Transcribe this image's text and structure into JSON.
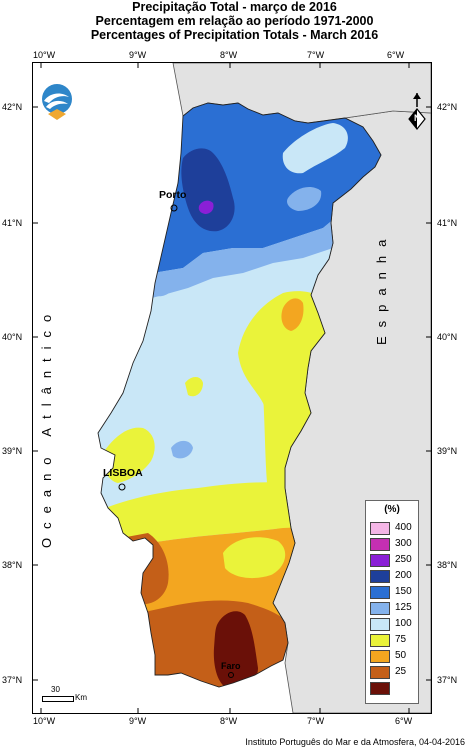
{
  "title": {
    "line1": "Precipitação Total  - março de 2016",
    "line2": "Percentagem em relação ao período 1971-2000",
    "line3": "Percentages of Precipitation Totals - March 2016"
  },
  "longitude_ticks": [
    "10°W",
    "9°W",
    "8°W",
    "7°W",
    "6°W"
  ],
  "latitude_ticks": [
    "42°N",
    "41°N",
    "40°N",
    "39°N",
    "38°N",
    "37°N"
  ],
  "places": {
    "porto": "Porto",
    "lisboa": "LISBOA",
    "faro": "Faro",
    "ocean": "Oceano Atlântico",
    "spain": "Espanha"
  },
  "legend": {
    "title": "(%)",
    "classes": [
      {
        "label": "400",
        "color": "#f4b6e6"
      },
      {
        "label": "300",
        "color": "#c42fb2"
      },
      {
        "label": "250",
        "color": "#8a1fd6"
      },
      {
        "label": "200",
        "color": "#1e3f9a"
      },
      {
        "label": "150",
        "color": "#2b6fd3"
      },
      {
        "label": "125",
        "color": "#84b2ec"
      },
      {
        "label": "100",
        "color": "#c9e7f7"
      },
      {
        "label": "75",
        "color": "#eaf33a"
      },
      {
        "label": "50",
        "color": "#f3a620"
      },
      {
        "label": "25",
        "color": "#c45f18"
      },
      {
        "label": "",
        "color": "#6a1008"
      }
    ]
  },
  "scale_bar": {
    "value": "30",
    "unit": "Km"
  },
  "north_arrow": {
    "label": "N",
    "icon": "north-arrow-icon"
  },
  "logo": {
    "icon": "ipma-logo-icon"
  },
  "credit": "Instituto Português do Mar e da Atmosfera, 04-04-2016"
}
